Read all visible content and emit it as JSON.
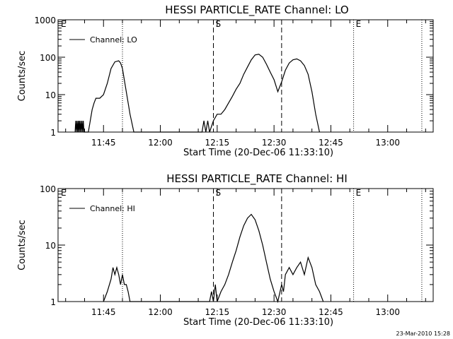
{
  "chart_data": [
    {
      "type": "line",
      "title": "HESSI PARTICLE_RATE Channel: LO",
      "xlabel": "Start Time (20-Dec-06 11:33:10)",
      "ylabel": "Counts/sec",
      "y_scale": "log",
      "ylim": [
        1,
        1000
      ],
      "y_ticks": [
        1,
        10,
        100,
        1000
      ],
      "xlim": [
        "11:33",
        "13:12"
      ],
      "x_ticks": [
        "11:45",
        "12:00",
        "12:15",
        "12:30",
        "12:45",
        "13:00"
      ],
      "legend": "top-left",
      "series": [
        {
          "name": "Channel: LO",
          "x": [
            "11:37:30",
            "11:37:40",
            "11:37:50",
            "11:38:00",
            "11:38:10",
            "11:38:20",
            "11:38:30",
            "11:38:40",
            "11:38:50",
            "11:39:00",
            "11:39:10",
            "11:39:20",
            "11:39:30",
            "11:39:40",
            "11:39:50",
            "11:41:00",
            "11:42:00",
            "11:42:30",
            "11:43:00",
            "11:44:00",
            "11:45:00",
            "11:46:00",
            "11:47:00",
            "11:48:00",
            "11:49:00",
            "11:49:30",
            "11:50:00",
            "11:51:00",
            "11:52:00",
            "11:53:00",
            "12:11:00",
            "12:11:30",
            "12:12:00",
            "12:12:30",
            "12:13:00",
            "12:14:00",
            "12:15:00",
            "12:16:00",
            "12:17:00",
            "12:18:00",
            "12:19:00",
            "12:20:00",
            "12:21:00",
            "12:22:00",
            "12:23:00",
            "12:24:00",
            "12:25:00",
            "12:26:00",
            "12:27:00",
            "12:28:00",
            "12:29:00",
            "12:30:00",
            "12:31:00",
            "12:32:00",
            "12:33:00",
            "12:34:00",
            "12:35:00",
            "12:36:00",
            "12:37:00",
            "12:38:00",
            "12:39:00",
            "12:40:00",
            "12:41:00",
            "12:42:00"
          ],
          "values": [
            1,
            2,
            1,
            2,
            1,
            2,
            1,
            2,
            1,
            2,
            1,
            2,
            1,
            2,
            1,
            1,
            4,
            6,
            8,
            8,
            10,
            20,
            50,
            75,
            80,
            70,
            50,
            12,
            3,
            1,
            1,
            2,
            1,
            2,
            1,
            2,
            3,
            3,
            4,
            6,
            9,
            14,
            20,
            35,
            55,
            85,
            115,
            120,
            100,
            65,
            40,
            25,
            12,
            22,
            45,
            70,
            85,
            90,
            80,
            60,
            35,
            12,
            3,
            1
          ]
        }
      ],
      "annotations": [
        "E",
        "S",
        "E"
      ],
      "vlines_dotted": [
        "11:50:00",
        "12:51:00",
        "13:09:00"
      ],
      "vlines_dashed": [
        "12:14:00",
        "12:32:00"
      ]
    },
    {
      "type": "line",
      "title": "HESSI PARTICLE_RATE Channel: HI",
      "xlabel": "Start Time (20-Dec-06 11:33:10)",
      "ylabel": "Counts/sec",
      "y_scale": "log",
      "ylim": [
        1,
        100
      ],
      "y_ticks": [
        1,
        10,
        100
      ],
      "xlim": [
        "11:33",
        "13:12"
      ],
      "x_ticks": [
        "11:45",
        "12:00",
        "12:15",
        "12:30",
        "12:45",
        "13:00"
      ],
      "legend": "top-left",
      "series": [
        {
          "name": "Channel: HI",
          "x": [
            "11:45:00",
            "11:46:00",
            "11:47:00",
            "11:47:30",
            "11:48:00",
            "11:48:30",
            "11:49:00",
            "11:49:30",
            "11:50:00",
            "11:50:30",
            "11:51:00",
            "11:51:30",
            "11:52:00",
            "11:52:30",
            "12:13:00",
            "12:13:30",
            "12:14:00",
            "12:14:30",
            "12:15:00",
            "12:16:00",
            "12:17:00",
            "12:18:00",
            "12:19:00",
            "12:20:00",
            "12:21:00",
            "12:22:00",
            "12:23:00",
            "12:24:00",
            "12:25:00",
            "12:26:00",
            "12:27:00",
            "12:28:00",
            "12:29:00",
            "12:30:00",
            "12:31:00",
            "12:32:00",
            "12:32:30",
            "12:33:00",
            "12:34:00",
            "12:35:00",
            "12:36:00",
            "12:37:00",
            "12:38:00",
            "12:39:00",
            "12:40:00",
            "12:41:00",
            "12:42:00",
            "12:43:00"
          ],
          "values": [
            1,
            1.5,
            2.5,
            4,
            3,
            4,
            3,
            2,
            3,
            2,
            2,
            1.5,
            1,
            1,
            1,
            1.5,
            1,
            2,
            1,
            1.5,
            2,
            3,
            5,
            8,
            14,
            22,
            30,
            35,
            28,
            18,
            10,
            5,
            2.5,
            1.5,
            1,
            2,
            1.5,
            3,
            4,
            3,
            4,
            5,
            3,
            6,
            4,
            2,
            1.5,
            1
          ]
        }
      ],
      "annotations": [
        "E",
        "S",
        "E"
      ],
      "vlines_dotted": [
        "11:50:00",
        "12:51:00",
        "13:09:00"
      ],
      "vlines_dashed": [
        "12:14:00",
        "12:32:00"
      ]
    }
  ],
  "footer": {
    "timestamp": "23-Mar-2010 15:28"
  }
}
